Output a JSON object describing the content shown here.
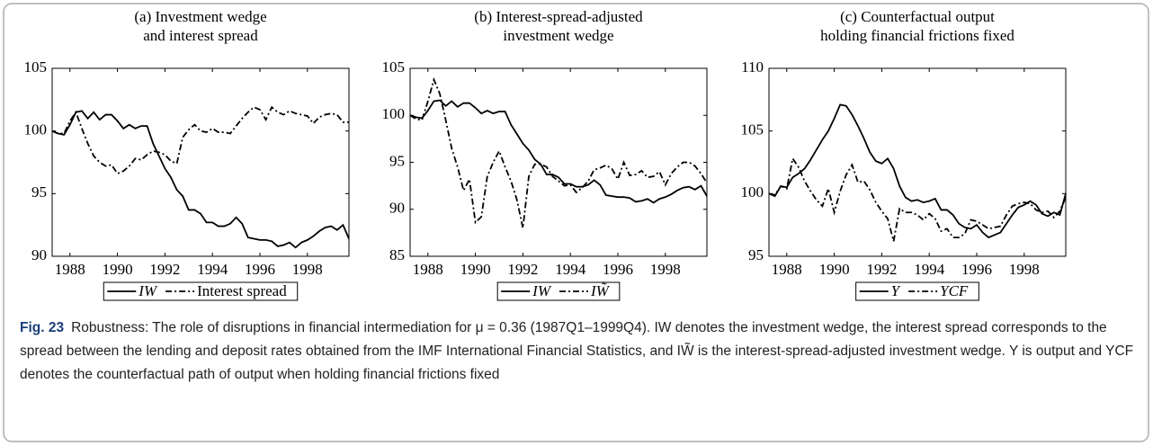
{
  "chart_data": [
    {
      "type": "line",
      "title": [
        "(a) Investment wedge",
        "and interest spread"
      ],
      "x": [
        1987.25,
        1987.5,
        1987.75,
        1988,
        1988.25,
        1988.5,
        1988.75,
        1989,
        1989.25,
        1989.5,
        1989.75,
        1990,
        1990.25,
        1990.5,
        1990.75,
        1991,
        1991.25,
        1991.5,
        1991.75,
        1992,
        1992.25,
        1992.5,
        1992.75,
        1993,
        1993.25,
        1993.5,
        1993.75,
        1994,
        1994.25,
        1994.5,
        1994.75,
        1995,
        1995.25,
        1995.5,
        1995.75,
        1996,
        1996.25,
        1996.5,
        1996.75,
        1997,
        1997.25,
        1997.5,
        1997.75,
        1998,
        1998.25,
        1998.5,
        1998.75,
        1999,
        1999.25,
        1999.5,
        1999.75
      ],
      "series": [
        {
          "name": "IW",
          "color": "#000000",
          "linestyle": "solid",
          "values": [
            100,
            99.8,
            99.7,
            100.5,
            101.5,
            101.6,
            101,
            101.5,
            100.9,
            101.3,
            101.3,
            100.8,
            100.2,
            100.5,
            100.2,
            100.4,
            100.4,
            99,
            98,
            97,
            96.3,
            95.3,
            94.8,
            93.7,
            93.7,
            93.4,
            92.7,
            92.7,
            92.4,
            92.4,
            92.6,
            93.1,
            92.6,
            91.5,
            91.4,
            91.3,
            91.3,
            91.2,
            90.8,
            90.9,
            91.1,
            90.7,
            91.1,
            91.3,
            91.6,
            92,
            92.3,
            92.4,
            92.1,
            92.5,
            91.4
          ]
        },
        {
          "name": "Interest spread",
          "color": "#000000",
          "linestyle": "dashdot",
          "values": [
            100,
            99.8,
            99.8,
            100.8,
            101.5,
            100.2,
            99,
            98,
            97.5,
            97.2,
            97.3,
            96.6,
            96.8,
            97.2,
            97.8,
            97.7,
            98.1,
            98.4,
            98.3,
            98.1,
            97.6,
            97.4,
            99.5,
            100.1,
            100.5,
            100,
            99.9,
            100.2,
            99.9,
            99.9,
            99.8,
            100.4,
            101,
            101.5,
            101.9,
            101.7,
            100.9,
            101.9,
            101.5,
            101.3,
            101.6,
            101.4,
            101.3,
            101.2,
            100.6,
            101.1,
            101.3,
            101.4,
            101.3,
            100.7,
            100.7
          ]
        }
      ],
      "xlim": [
        1987.25,
        1999.75
      ],
      "xticks": [
        1988,
        1990,
        1992,
        1994,
        1996,
        1998
      ],
      "ylim": [
        90,
        105
      ],
      "yticks": [
        90,
        95,
        100,
        105
      ]
    },
    {
      "type": "line",
      "title": [
        "(b) Interest-spread-adjusted",
        "investment wedge"
      ],
      "x": [
        1987.25,
        1987.5,
        1987.75,
        1988,
        1988.25,
        1988.5,
        1988.75,
        1989,
        1989.25,
        1989.5,
        1989.75,
        1990,
        1990.25,
        1990.5,
        1990.75,
        1991,
        1991.25,
        1991.5,
        1991.75,
        1992,
        1992.25,
        1992.5,
        1992.75,
        1993,
        1993.25,
        1993.5,
        1993.75,
        1994,
        1994.25,
        1994.5,
        1994.75,
        1995,
        1995.25,
        1995.5,
        1995.75,
        1996,
        1996.25,
        1996.5,
        1996.75,
        1997,
        1997.25,
        1997.5,
        1997.75,
        1998,
        1998.25,
        1998.5,
        1998.75,
        1999,
        1999.25,
        1999.5,
        1999.75
      ],
      "series": [
        {
          "name": "IW",
          "color": "#000000",
          "linestyle": "solid",
          "values": [
            100,
            99.8,
            99.7,
            100.5,
            101.5,
            101.6,
            101,
            101.5,
            100.9,
            101.3,
            101.3,
            100.8,
            100.2,
            100.5,
            100.2,
            100.4,
            100.4,
            99,
            98,
            97,
            96.3,
            95.3,
            94.8,
            93.7,
            93.7,
            93.4,
            92.7,
            92.7,
            92.4,
            92.4,
            92.6,
            93.1,
            92.6,
            91.5,
            91.4,
            91.3,
            91.3,
            91.2,
            90.8,
            90.9,
            91.1,
            90.7,
            91.1,
            91.3,
            91.6,
            92,
            92.3,
            92.4,
            92.1,
            92.5,
            91.4
          ]
        },
        {
          "name": "IW̃",
          "color": "#000000",
          "linestyle": "dashdot",
          "values": [
            100,
            99.6,
            99.5,
            101.5,
            103.8,
            102.3,
            99.5,
            96.5,
            94.5,
            92,
            93.2,
            88.6,
            89.2,
            93.5,
            95,
            96.2,
            94.5,
            93,
            91,
            88,
            93.5,
            94.8,
            94.8,
            94.5,
            93.5,
            93,
            92.5,
            92.6,
            91.8,
            92.3,
            93,
            94.2,
            94.4,
            94.7,
            94.3,
            93.2,
            95,
            93.6,
            93.7,
            94.1,
            93.4,
            93.5,
            94,
            92.6,
            93.8,
            94.5,
            95,
            95,
            94.6,
            93.8,
            92.8
          ]
        }
      ],
      "xlim": [
        1987.25,
        1999.75
      ],
      "xticks": [
        1988,
        1990,
        1992,
        1994,
        1996,
        1998
      ],
      "ylim": [
        85,
        105
      ],
      "yticks": [
        85,
        90,
        95,
        100,
        105
      ]
    },
    {
      "type": "line",
      "title": [
        "(c) Counterfactual output",
        "holding financial frictions fixed"
      ],
      "x": [
        1987.25,
        1987.5,
        1987.75,
        1988,
        1988.25,
        1988.5,
        1988.75,
        1989,
        1989.25,
        1989.5,
        1989.75,
        1990,
        1990.25,
        1990.5,
        1990.75,
        1991,
        1991.25,
        1991.5,
        1991.75,
        1992,
        1992.25,
        1992.5,
        1992.75,
        1993,
        1993.25,
        1993.5,
        1993.75,
        1994,
        1994.25,
        1994.5,
        1994.75,
        1995,
        1995.25,
        1995.5,
        1995.75,
        1996,
        1996.25,
        1996.5,
        1996.75,
        1997,
        1997.25,
        1997.5,
        1997.75,
        1998,
        1998.25,
        1998.5,
        1998.75,
        1999,
        1999.25,
        1999.5,
        1999.75
      ],
      "series": [
        {
          "name": "Y",
          "color": "#000000",
          "linestyle": "solid",
          "values": [
            100,
            99.8,
            100.6,
            100.5,
            101.3,
            101.6,
            102,
            102.7,
            103.5,
            104.3,
            105,
            106,
            107.1,
            107,
            106.3,
            105.4,
            104.4,
            103.3,
            102.6,
            102.4,
            102.8,
            102,
            100.6,
            99.7,
            99.4,
            99.5,
            99.3,
            99.4,
            99.6,
            98.7,
            98.7,
            98.3,
            97.6,
            97.3,
            97.2,
            97.5,
            96.9,
            96.5,
            96.7,
            96.9,
            97.6,
            98.3,
            98.9,
            99.1,
            99.4,
            99.1,
            98.4,
            98.2,
            98.5,
            98.3,
            100
          ]
        },
        {
          "name": "YCF",
          "color": "#000000",
          "linestyle": "dashdot",
          "values": [
            100,
            99.9,
            100.6,
            100.4,
            102.8,
            102.1,
            101,
            100.2,
            99.5,
            99,
            100.4,
            98.5,
            100.2,
            101.5,
            102.3,
            100.9,
            101,
            100.3,
            99.3,
            98.6,
            98,
            96.2,
            98.8,
            98.5,
            98.5,
            98.3,
            97.9,
            98.4,
            98,
            97,
            97.2,
            96.5,
            96.5,
            96.8,
            97.9,
            97.8,
            97.5,
            97.2,
            97.3,
            97.4,
            98.3,
            99,
            99.2,
            99.3,
            99.2,
            98.7,
            98.5,
            98.6,
            98.1,
            98.6,
            99.7
          ]
        }
      ],
      "xlim": [
        1987.25,
        1999.75
      ],
      "xticks": [
        1988,
        1990,
        1992,
        1994,
        1996,
        1998
      ],
      "ylim": [
        95,
        110
      ],
      "yticks": [
        95,
        100,
        105,
        110
      ]
    }
  ],
  "caption": {
    "label": "Fig. 23",
    "text": "Robustness: The role of disruptions in financial intermediation for μ = 0.36 (1987Q1–1999Q4). IW denotes the investment wedge, the interest spread corresponds to the spread between the lending and deposit rates obtained from the IMF International Financial Statistics, and IW̃ is the interest-spread-adjusted investment wedge. Y is output and YCF denotes the counterfactual path of output when holding financial frictions fixed"
  }
}
